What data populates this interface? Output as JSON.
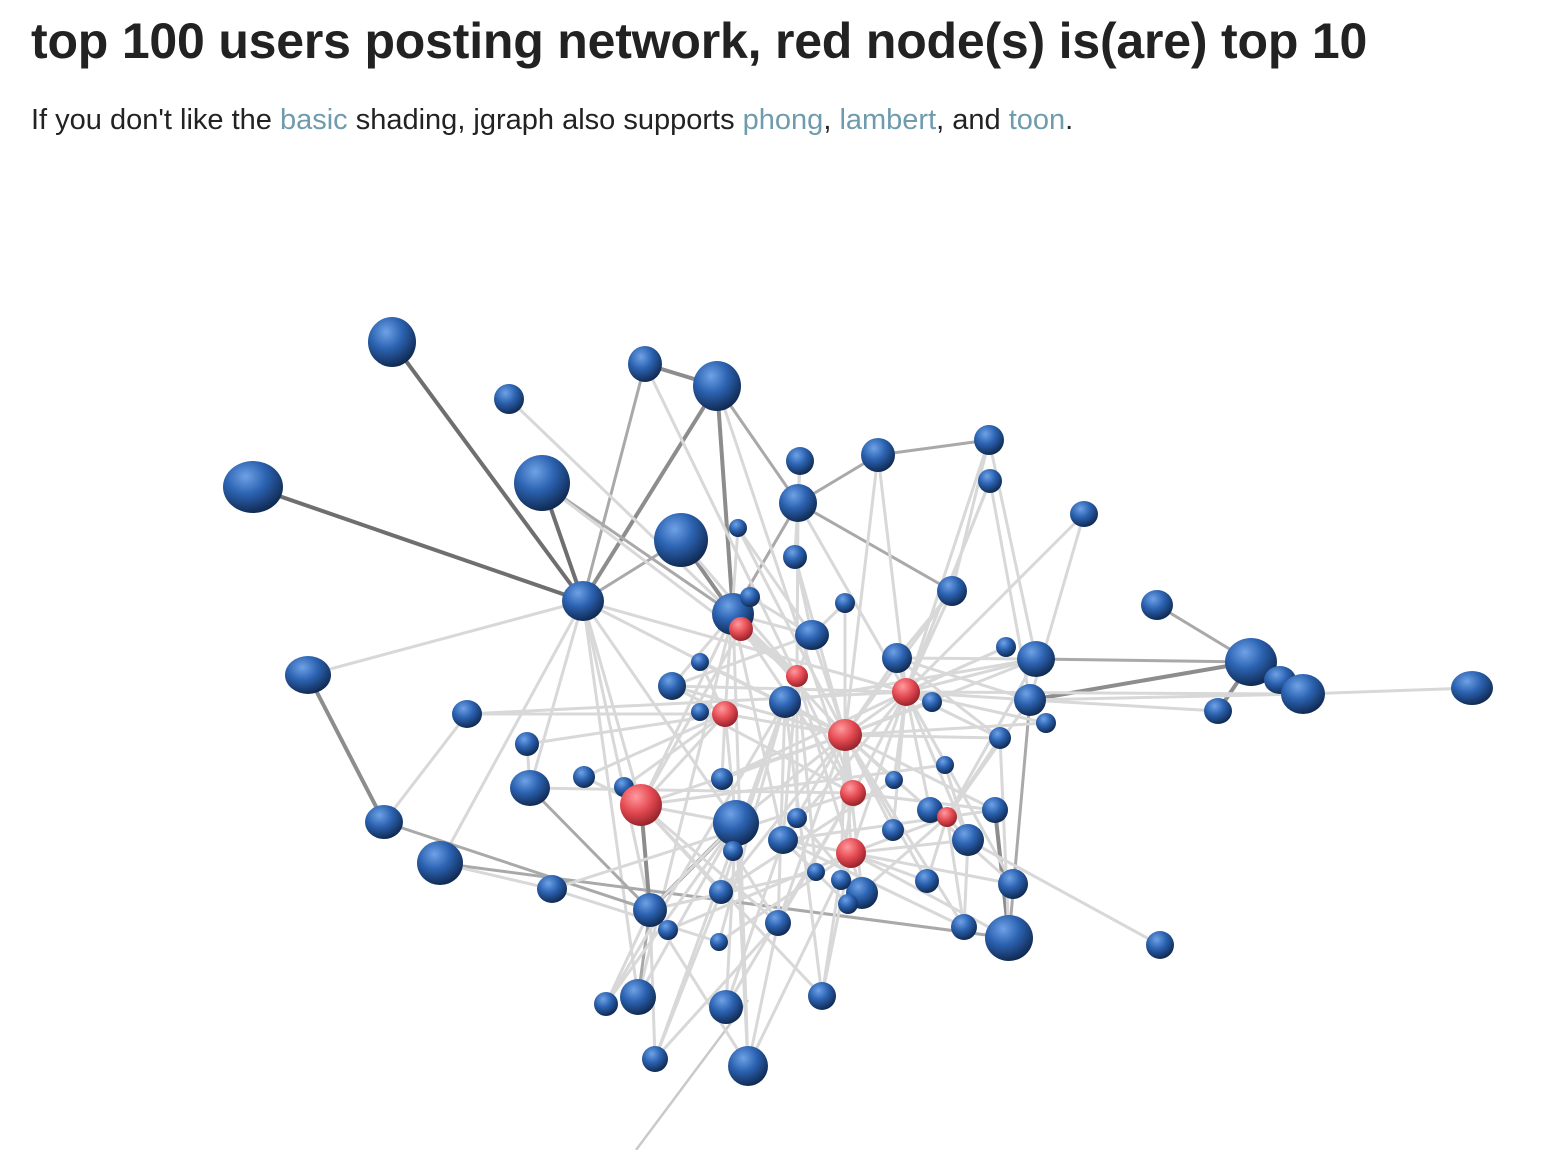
{
  "page": {
    "title": "top 100 users posting network, red node(s) is(are) top 10",
    "intro": {
      "text_1": "If you don't like the ",
      "link_basic": "basic",
      "text_2": " shading, jgraph also supports ",
      "link_phong": "phong",
      "text_3": ", ",
      "link_lambert": "lambert",
      "text_4": ", and ",
      "link_toon": "toon",
      "text_5": "."
    }
  },
  "colors": {
    "node_regular": "#2b62b0",
    "node_top10": "#e0474f",
    "edge": "#d8d8d8",
    "link": "#6e9cae"
  }
}
